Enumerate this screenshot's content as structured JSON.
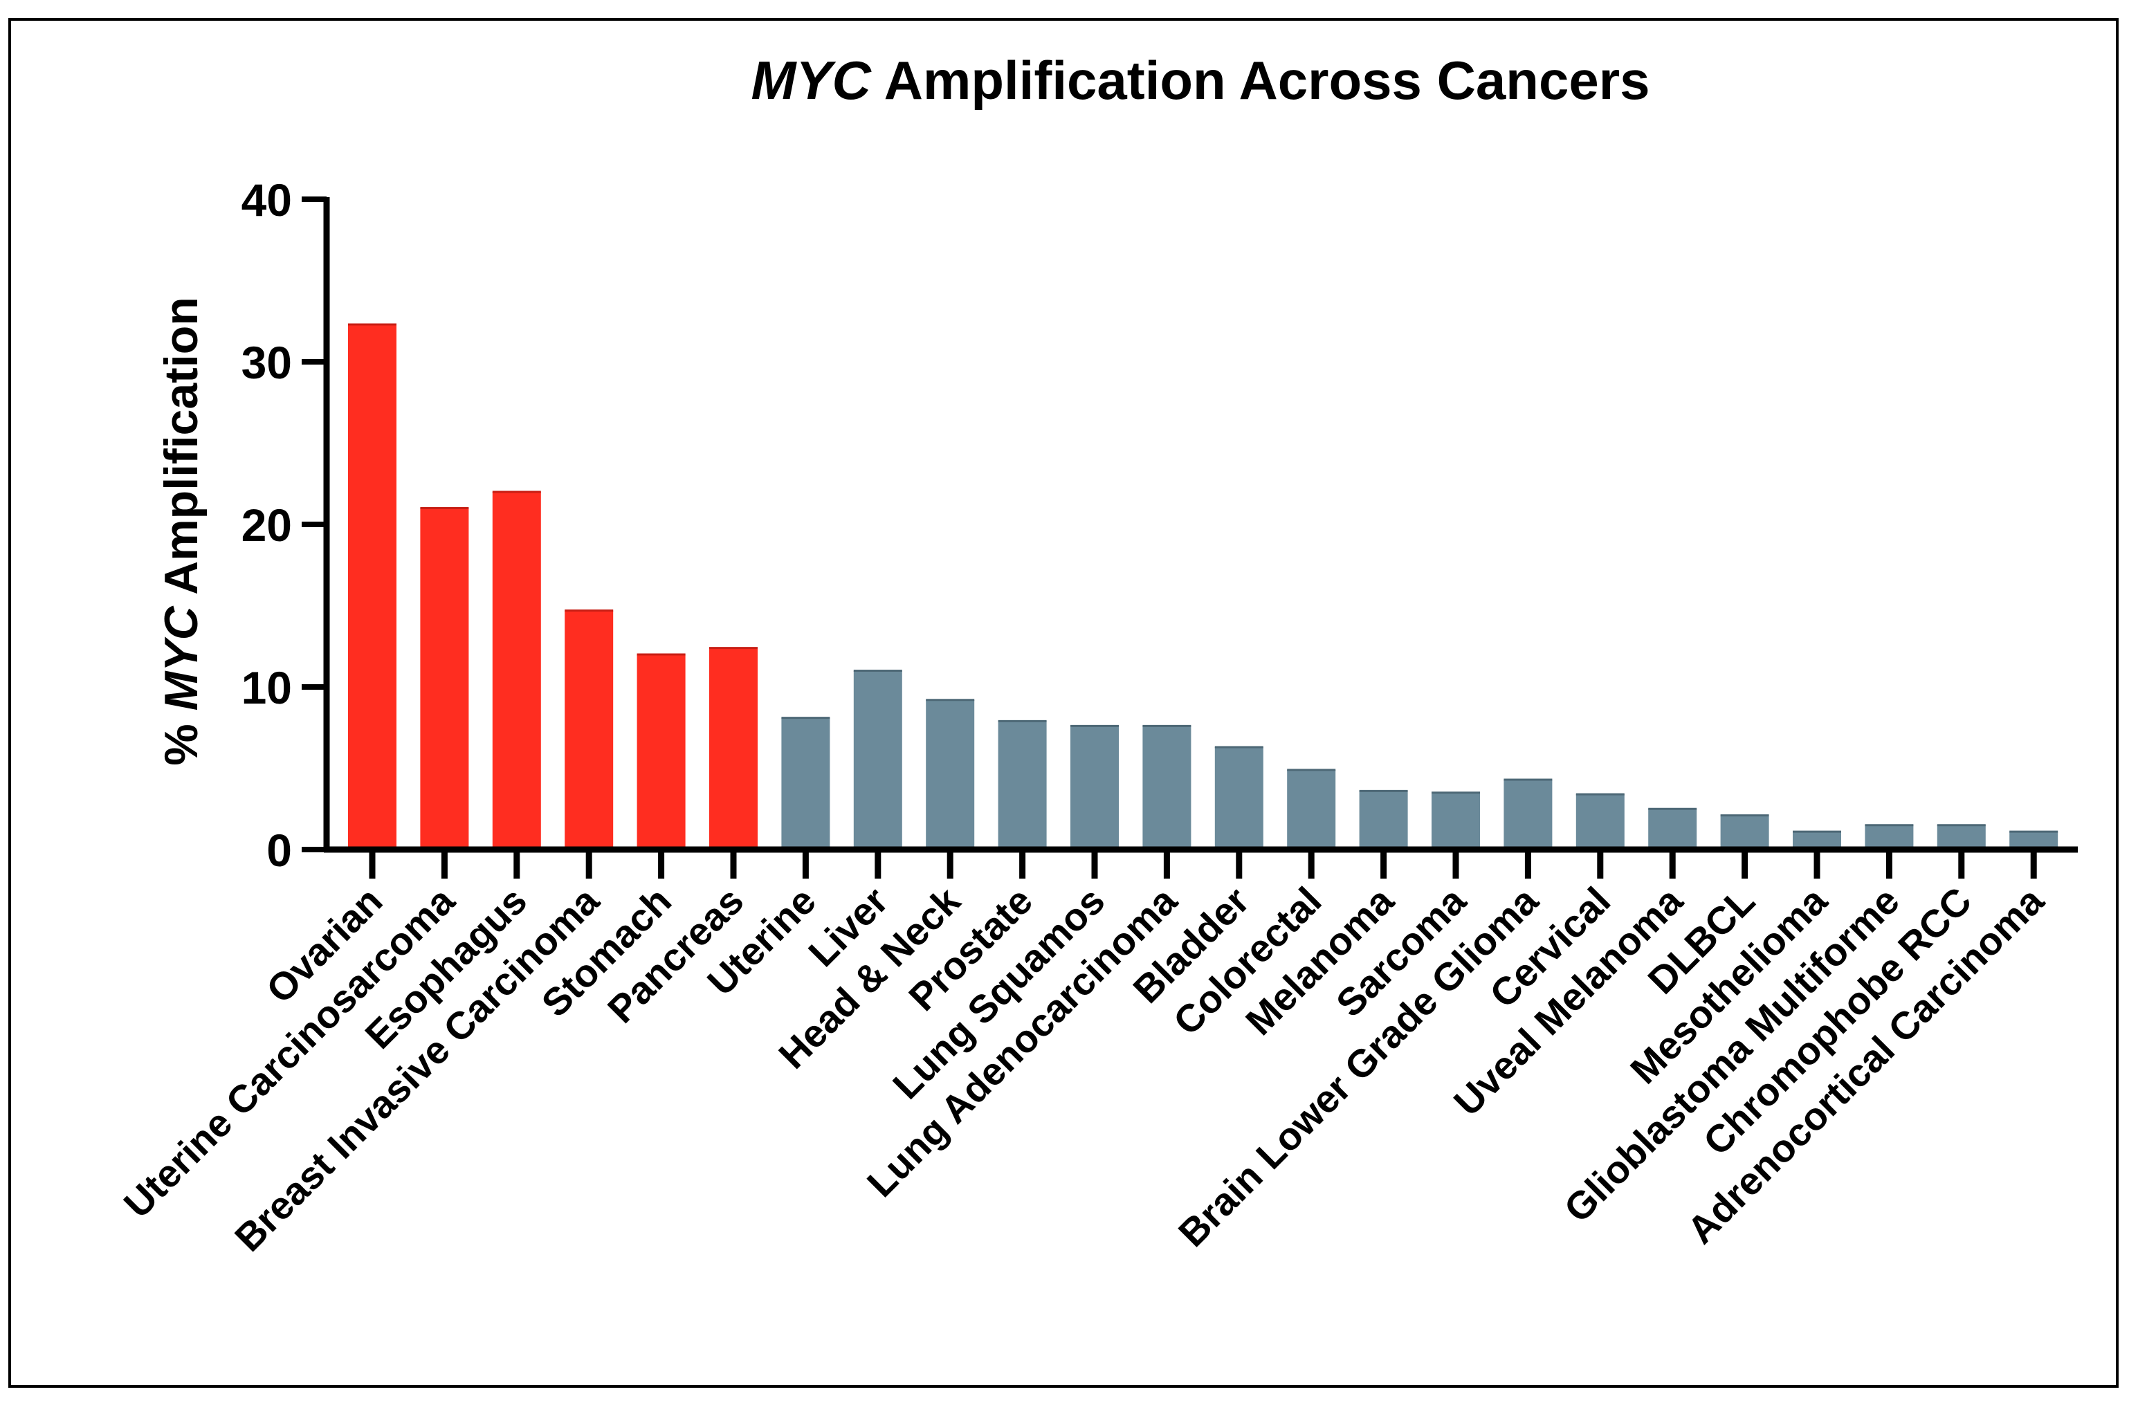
{
  "colors": {
    "highlight": "#ff2d20",
    "default": "#6b8a9a",
    "axis": "#000000",
    "frame": "#000000"
  },
  "chart_data": {
    "type": "bar",
    "title_italic": "MYC",
    "title_rest": " Amplification Across Cancers",
    "ylabel_prefix": "% ",
    "ylabel_italic": "MYC",
    "ylabel_suffix": " Amplification",
    "xlabel": "",
    "ylim": [
      0,
      40
    ],
    "yticks": [
      0,
      10,
      20,
      30,
      40
    ],
    "grid": false,
    "legend": "none",
    "categories": [
      "Ovarian",
      "Uterine Carcinosarcoma",
      "Esophagus",
      "Breast Invasive Carcinoma",
      "Stomach",
      "Pancreas",
      "Uterine",
      "Liver",
      "Head & Neck",
      "Prostate",
      "Lung Squamos",
      "Lung Adenocarcinoma",
      "Bladder",
      "Colorectal",
      "Melanoma",
      "Sarcoma",
      "Brain Lower Grade Glioma",
      "Cervical",
      "Uveal Melanoma",
      "DLBCL",
      "Mesothelioma",
      "Glioblastoma Multiforme",
      "Chromophobe RCC",
      "Adrenocortical Carcinoma"
    ],
    "values": [
      32.3,
      21.0,
      22.0,
      14.7,
      12.0,
      12.4,
      8.1,
      11.0,
      9.2,
      7.9,
      7.6,
      7.6,
      6.3,
      4.9,
      3.6,
      3.5,
      4.3,
      3.4,
      2.5,
      2.1,
      1.1,
      1.5,
      1.5,
      1.1
    ],
    "highlighted": [
      true,
      true,
      true,
      true,
      true,
      true,
      false,
      false,
      false,
      false,
      false,
      false,
      false,
      false,
      false,
      false,
      false,
      false,
      false,
      false,
      false,
      false,
      false,
      false
    ]
  }
}
